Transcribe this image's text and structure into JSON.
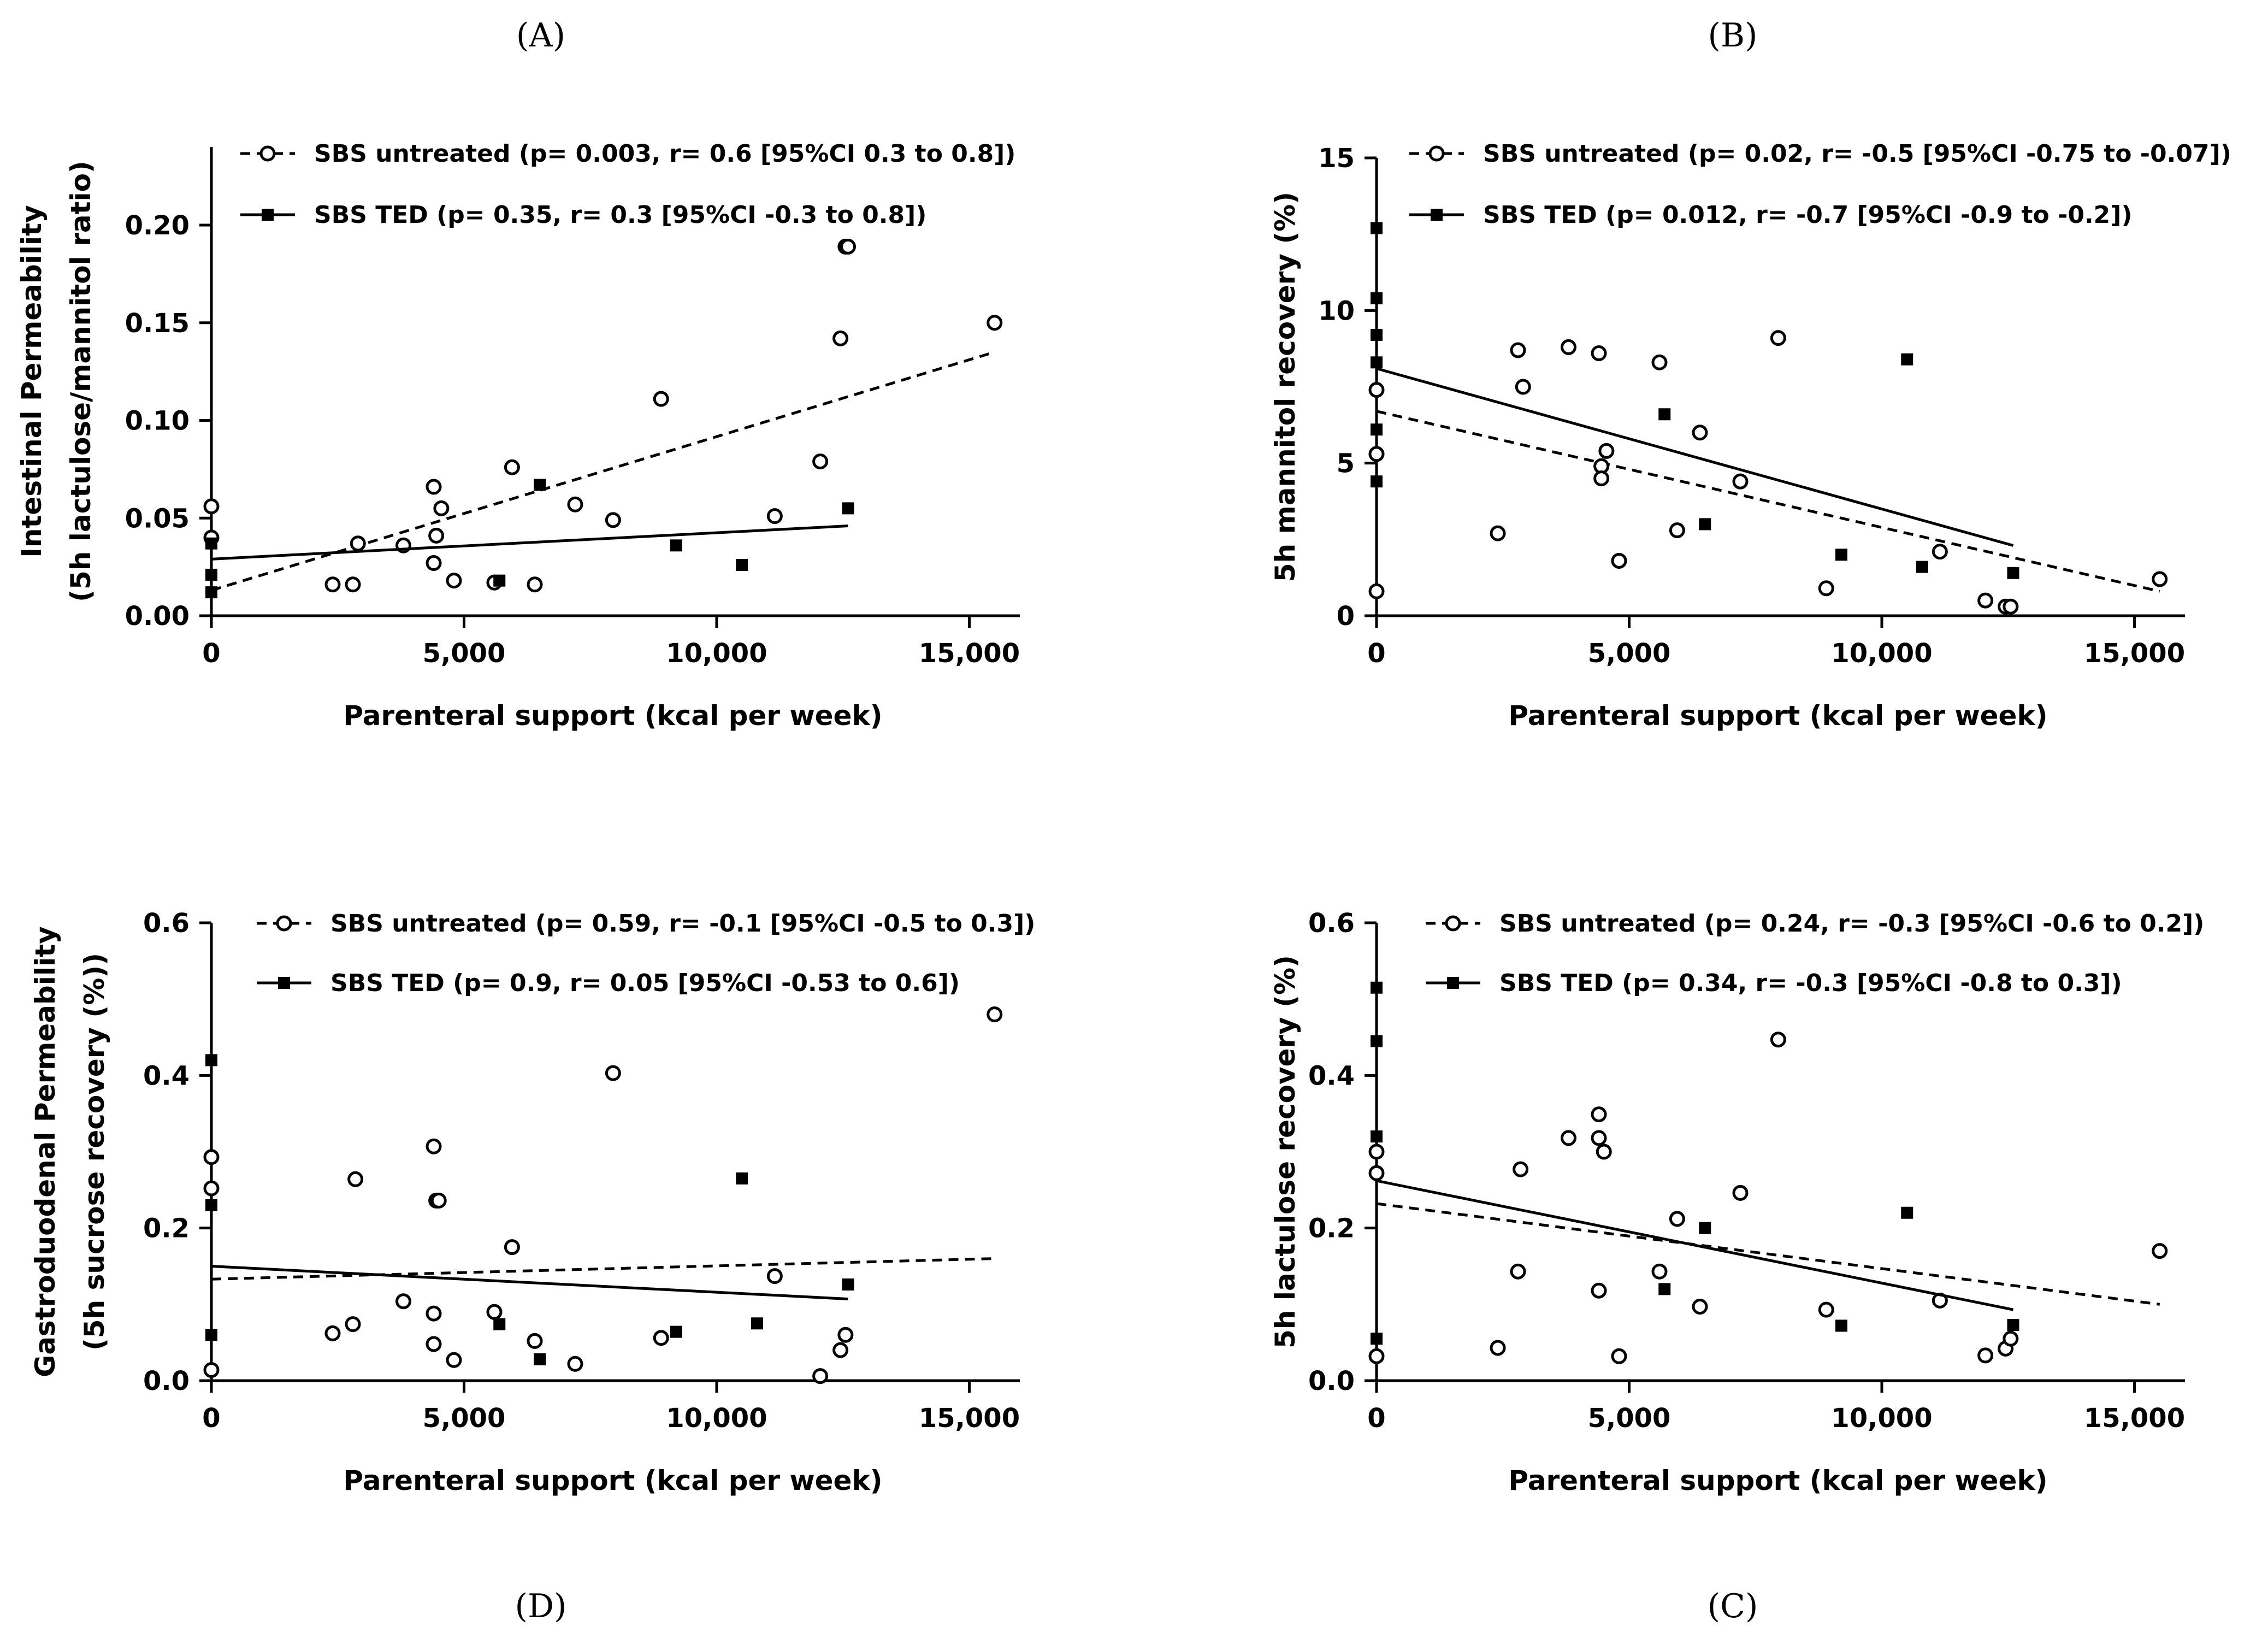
{
  "chart_data": [
    {
      "panel": "(A)",
      "type": "scatter",
      "xlabel": "Parenteral support (kcal per week)",
      "ylabel_lines": [
        "Intestinal Permeability",
        "(5h lactulose/mannitol ratio)"
      ],
      "xlim": [
        0,
        16000
      ],
      "ylim": [
        0,
        0.24
      ],
      "xticks": [
        0,
        5000,
        10000,
        15000
      ],
      "xtick_labels": [
        "0",
        "5,000",
        "10,000",
        "15,000"
      ],
      "yticks": [
        0,
        0.05,
        0.1,
        0.15,
        0.2
      ],
      "ytick_labels": [
        "0.00",
        "0.05",
        "0.10",
        "0.15",
        "0.20"
      ],
      "series": [
        {
          "name": "SBS untreated (p= 0.003, r= 0.6 [95%CI 0.3 to 0.8])",
          "marker": "open-circle",
          "line": "dashed",
          "line_fit": [
            [
              0,
              0.013
            ],
            [
              15500,
              0.135
            ]
          ],
          "x": [
            0,
            0,
            2400,
            2800,
            2900,
            3800,
            4400,
            4400,
            4450,
            4550,
            4800,
            5600,
            5950,
            6400,
            7200,
            7950,
            8900,
            11150,
            12050,
            12450,
            12550,
            12600,
            15500
          ],
          "y": [
            0.056,
            0.04,
            0.016,
            0.016,
            0.037,
            0.036,
            0.066,
            0.027,
            0.041,
            0.055,
            0.018,
            0.017,
            0.076,
            0.016,
            0.057,
            0.049,
            0.111,
            0.051,
            0.079,
            0.142,
            0.189,
            0.189,
            0.15
          ]
        },
        {
          "name": "SBS TED (p= 0.35,  r= 0.3 [95%CI -0.3 to 0.8])",
          "marker": "filled-square",
          "line": "solid",
          "line_fit": [
            [
              0,
              0.029
            ],
            [
              12600,
              0.046
            ]
          ],
          "x": [
            0,
            0,
            0,
            5700,
            6500,
            9200,
            10500,
            12600
          ],
          "y": [
            0.037,
            0.021,
            0.012,
            0.018,
            0.067,
            0.036,
            0.026,
            0.055
          ]
        }
      ]
    },
    {
      "panel": "(B)",
      "type": "scatter",
      "xlabel": "Parenteral support (kcal per week)",
      "ylabel_lines": [
        "5h mannitol recovery (%)"
      ],
      "xlim": [
        0,
        16000
      ],
      "ylim": [
        0,
        15
      ],
      "xticks": [
        0,
        5000,
        10000,
        15000
      ],
      "xtick_labels": [
        "0",
        "5,000",
        "10,000",
        "15,000"
      ],
      "yticks": [
        0,
        5,
        10,
        15
      ],
      "ytick_labels": [
        "0",
        "5",
        "10",
        "15"
      ],
      "series": [
        {
          "name": "SBS untreated (p= 0.02, r= -0.5 [95%CI -0.75 to -0.07])",
          "marker": "open-circle",
          "line": "dashed",
          "line_fit": [
            [
              0,
              6.7
            ],
            [
              15500,
              0.8
            ]
          ],
          "x": [
            0,
            0,
            0,
            2400,
            2800,
            2900,
            3800,
            4400,
            4450,
            4450,
            4550,
            4800,
            5600,
            5950,
            6400,
            7200,
            7950,
            8900,
            11150,
            12050,
            12450,
            12550,
            15500
          ],
          "y": [
            7.4,
            5.3,
            0.8,
            2.7,
            8.7,
            7.5,
            8.8,
            8.6,
            4.9,
            4.5,
            5.4,
            1.8,
            8.3,
            2.8,
            6.0,
            4.4,
            9.1,
            0.9,
            2.1,
            0.5,
            0.3,
            0.3,
            1.2
          ]
        },
        {
          "name": "SBS TED (p= 0.012,  r= -0.7 [95%CI -0.9 to -0.2])",
          "marker": "filled-square",
          "line": "solid",
          "line_fit": [
            [
              0,
              8.1
            ],
            [
              12600,
              2.3
            ]
          ],
          "x": [
            0,
            0,
            0,
            0,
            0,
            0,
            5700,
            6500,
            9200,
            10500,
            10800,
            12600
          ],
          "y": [
            12.7,
            10.4,
            9.2,
            8.3,
            6.1,
            4.4,
            6.6,
            3.0,
            2.0,
            8.4,
            1.6,
            1.4
          ]
        }
      ]
    },
    {
      "panel": "(D)",
      "type": "scatter",
      "xlabel": "Parenteral support (kcal per week)",
      "ylabel_lines": [
        "Gastroduodenal Permeability",
        "(5h sucrose recovery (%))"
      ],
      "xlim": [
        0,
        16000
      ],
      "ylim": [
        0,
        0.6
      ],
      "xticks": [
        0,
        5000,
        10000,
        15000
      ],
      "xtick_labels": [
        "0",
        "5,000",
        "10,000",
        "15,000"
      ],
      "yticks": [
        0,
        0.2,
        0.4,
        0.6
      ],
      "ytick_labels": [
        "0.0",
        "0.2",
        "0.4",
        "0.6"
      ],
      "series": [
        {
          "name": "SBS untreated (p= 0.59, r= -0.1 [95%CI -0.5 to 0.3])",
          "marker": "open-circle",
          "line": "dashed",
          "line_fit": [
            [
              0,
              0.133
            ],
            [
              15500,
              0.16
            ]
          ],
          "x": [
            0,
            0,
            0,
            2400,
            2800,
            2850,
            3800,
            4400,
            4400,
            4400,
            4450,
            4500,
            4800,
            5600,
            5950,
            6400,
            7200,
            7950,
            8900,
            11150,
            12050,
            12450,
            12550,
            15500
          ],
          "y": [
            0.293,
            0.252,
            0.014,
            0.062,
            0.074,
            0.264,
            0.104,
            0.307,
            0.088,
            0.048,
            0.236,
            0.236,
            0.027,
            0.09,
            0.175,
            0.052,
            0.022,
            0.403,
            0.056,
            0.137,
            0.006,
            0.04,
            0.06,
            0.48
          ]
        },
        {
          "name": "SBS TED (p= 0.9,  r= 0.05 [95%CI -0.53 to 0.6])",
          "marker": "filled-square",
          "line": "solid",
          "line_fit": [
            [
              0,
              0.15
            ],
            [
              12600,
              0.107
            ]
          ],
          "x": [
            0,
            0,
            0,
            5700,
            6500,
            9200,
            10500,
            10800,
            12600
          ],
          "y": [
            0.42,
            0.23,
            0.06,
            0.074,
            0.028,
            0.064,
            0.265,
            0.075,
            0.126
          ]
        }
      ]
    },
    {
      "panel": "(C)",
      "type": "scatter",
      "xlabel": "Parenteral support (kcal per week)",
      "ylabel_lines": [
        "5h lactulose recovery (%)"
      ],
      "xlim": [
        0,
        16000
      ],
      "ylim": [
        0,
        0.6
      ],
      "xticks": [
        0,
        5000,
        10000,
        15000
      ],
      "xtick_labels": [
        "0",
        "5,000",
        "10,000",
        "15,000"
      ],
      "yticks": [
        0,
        0.2,
        0.4,
        0.6
      ],
      "ytick_labels": [
        "0.0",
        "0.2",
        "0.4",
        "0.6"
      ],
      "series": [
        {
          "name": "SBS untreated (p= 0.24, r= -0.3 [95%CI -0.6 to 0.2])",
          "marker": "open-circle",
          "line": "dashed",
          "line_fit": [
            [
              0,
              0.232
            ],
            [
              15500,
              0.1
            ]
          ],
          "x": [
            0,
            0,
            0,
            2400,
            2800,
            2850,
            3800,
            4400,
            4400,
            4400,
            4500,
            4800,
            5600,
            5950,
            6400,
            7200,
            7950,
            8900,
            11150,
            12050,
            12450,
            12550,
            15500
          ],
          "y": [
            0.3,
            0.272,
            0.032,
            0.043,
            0.143,
            0.277,
            0.318,
            0.318,
            0.349,
            0.118,
            0.3,
            0.032,
            0.143,
            0.212,
            0.097,
            0.246,
            0.447,
            0.093,
            0.105,
            0.033,
            0.042,
            0.055,
            0.17
          ]
        },
        {
          "name": "SBS TED (p= 0.34,  r= -0.3 [95%CI -0.8 to 0.3])",
          "marker": "filled-square",
          "line": "solid",
          "line_fit": [
            [
              0,
              0.262
            ],
            [
              12600,
              0.093
            ]
          ],
          "x": [
            0,
            0,
            0,
            0,
            5700,
            6500,
            9200,
            10500,
            12600
          ],
          "y": [
            0.515,
            0.445,
            0.32,
            0.055,
            0.12,
            0.2,
            0.072,
            0.22,
            0.073
          ]
        }
      ]
    }
  ]
}
